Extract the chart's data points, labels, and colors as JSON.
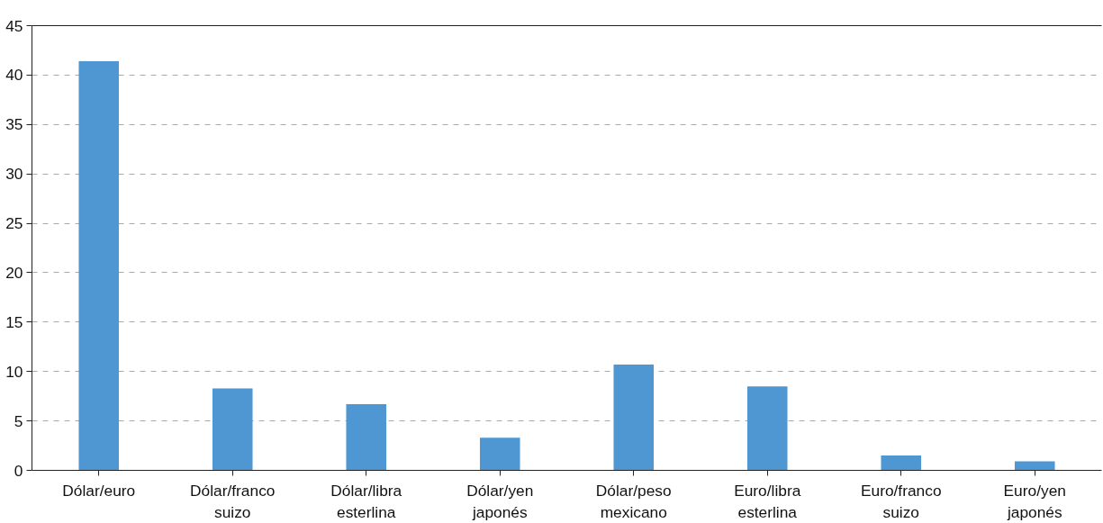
{
  "chart_data": {
    "type": "bar",
    "categories": [
      "Dólar/euro",
      "Dólar/franco suizo",
      "Dólar/libra esterlina",
      "Dólar/yen japonés",
      "Dólar/peso mexicano",
      "Euro/libra esterlina",
      "Euro/franco suizo",
      "Euro/yen japonés"
    ],
    "values": [
      41.4,
      8.3,
      6.7,
      3.3,
      10.7,
      8.5,
      1.5,
      0.9
    ],
    "color": "#4f97d3",
    "ylim": [
      0,
      45
    ],
    "yticks": [
      0,
      5,
      10,
      15,
      20,
      25,
      30,
      35,
      40,
      45
    ],
    "grid": "y"
  }
}
